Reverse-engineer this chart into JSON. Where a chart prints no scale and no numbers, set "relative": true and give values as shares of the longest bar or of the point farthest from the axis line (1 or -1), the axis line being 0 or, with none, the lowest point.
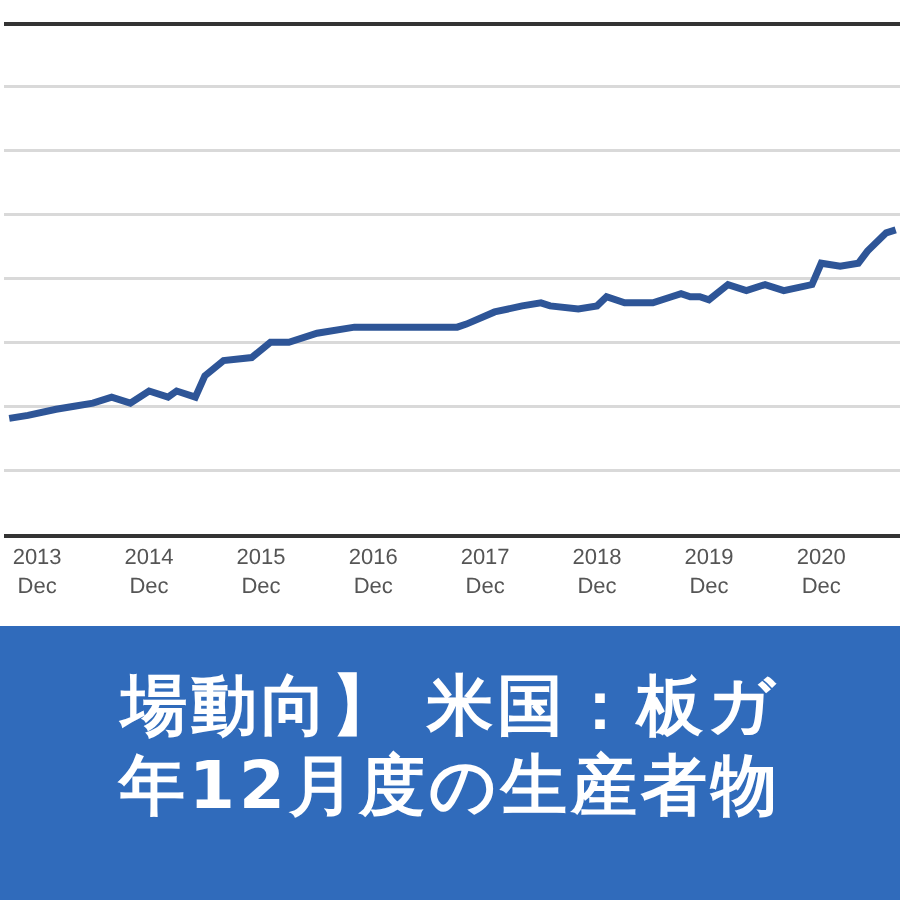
{
  "chart_data": {
    "type": "line",
    "title": "場動向】 米国：板ガ",
    "subtitle": "年12月度の生産者物",
    "relative": true,
    "grid": "y",
    "color": "#2e5597",
    "x": [
      "2013-09",
      "2013-11",
      "2014-02",
      "2014-04",
      "2014-06",
      "2014-08",
      "2014-10",
      "2014-12",
      "2015-02",
      "2015-03",
      "2015-05",
      "2015-06",
      "2015-08",
      "2015-11",
      "2016-01",
      "2016-03",
      "2016-06",
      "2016-10",
      "2017-01",
      "2017-05",
      "2017-09",
      "2017-10",
      "2018-01",
      "2018-04",
      "2018-06",
      "2018-07",
      "2018-10",
      "2018-12",
      "2019-01",
      "2019-03",
      "2019-06",
      "2019-08",
      "2019-09",
      "2019-10",
      "2019-11",
      "2019-12",
      "2020-02",
      "2020-04",
      "2020-06",
      "2020-08",
      "2020-11",
      "2020-12",
      "2021-02",
      "2021-04",
      "2021-05",
      "2021-07",
      "2021-08"
    ],
    "values": [
      0.38,
      0.39,
      0.41,
      0.42,
      0.43,
      0.45,
      0.43,
      0.47,
      0.45,
      0.47,
      0.45,
      0.52,
      0.57,
      0.58,
      0.63,
      0.63,
      0.66,
      0.68,
      0.68,
      0.68,
      0.68,
      0.69,
      0.73,
      0.75,
      0.76,
      0.75,
      0.74,
      0.75,
      0.78,
      0.76,
      0.76,
      0.78,
      0.79,
      0.78,
      0.78,
      0.77,
      0.82,
      0.8,
      0.82,
      0.8,
      0.82,
      0.89,
      0.88,
      0.89,
      0.93,
      0.99,
      1
    ],
    "xlim": [
      "2013-08-15",
      "2021-08-15"
    ],
    "xticks": [
      {
        "value": "2013-12",
        "label": "2013\nDec"
      },
      {
        "value": "2014-12",
        "label": "2014\nDec"
      },
      {
        "value": "2015-12",
        "label": "2015\nDec"
      },
      {
        "value": "2016-12",
        "label": "2016\nDec"
      },
      {
        "value": "2017-12",
        "label": "2017\nDec"
      },
      {
        "value": "2018-12",
        "label": "2018\nDec"
      },
      {
        "value": "2019-12",
        "label": "2019\nDec"
      },
      {
        "value": "2020-12",
        "label": "2020\nDec"
      }
    ]
  }
}
